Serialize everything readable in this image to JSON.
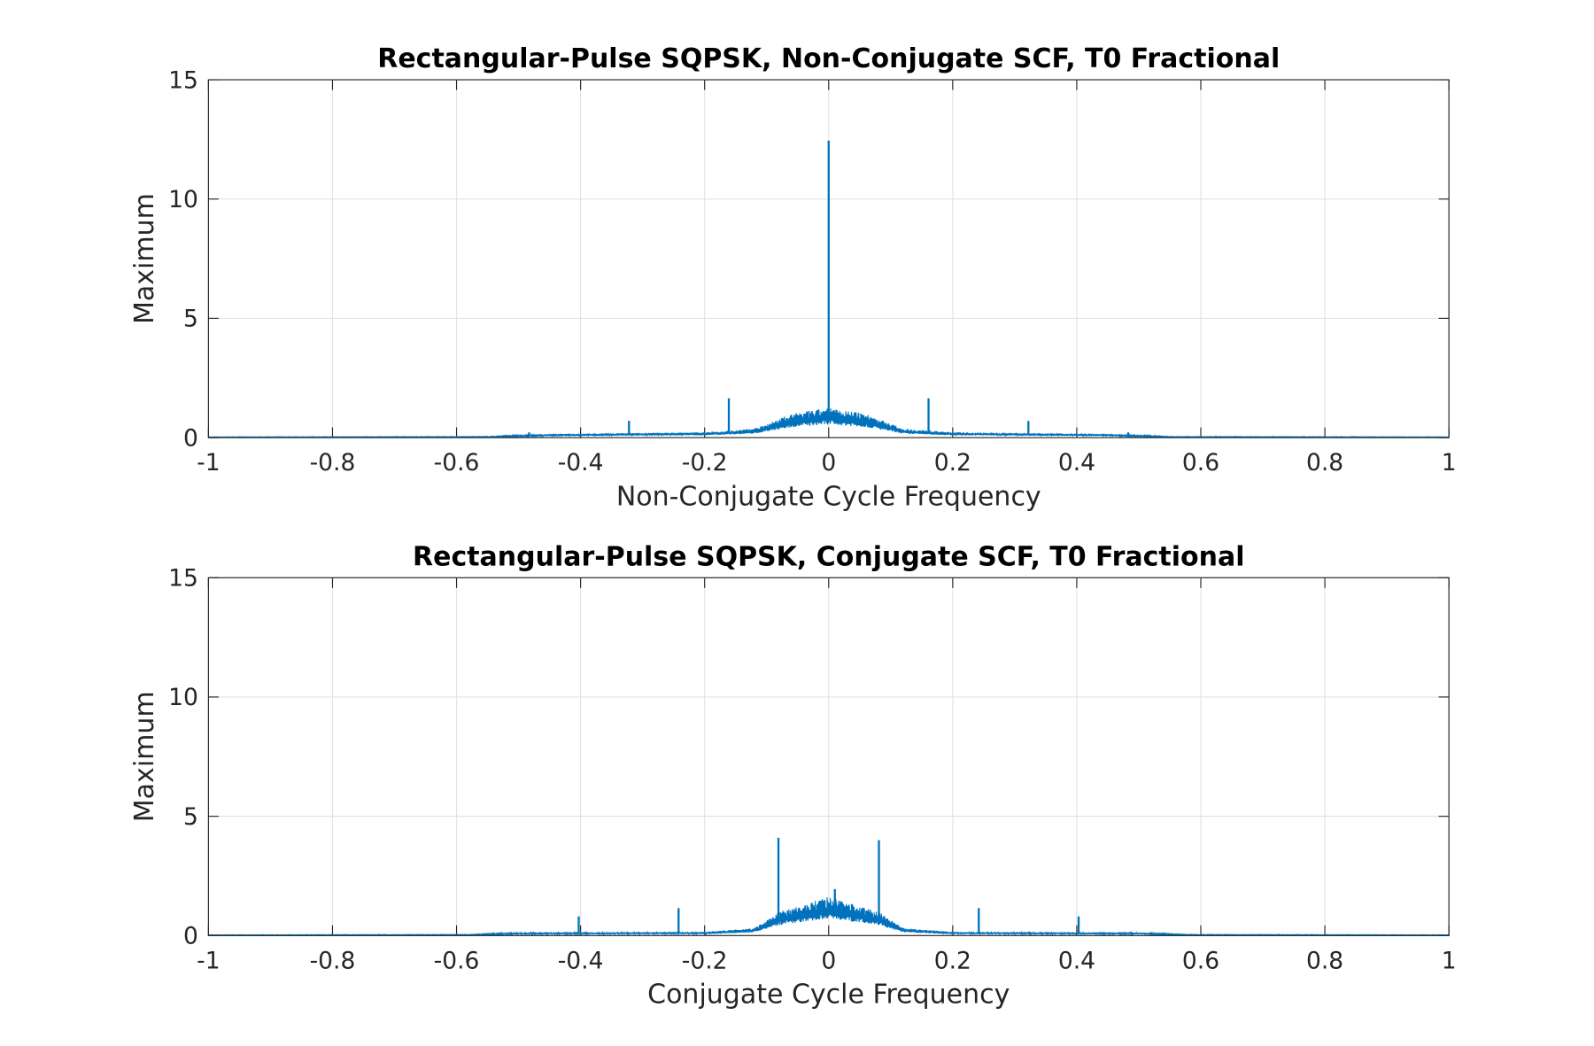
{
  "chart_data": [
    {
      "type": "line",
      "title": "Rectangular-Pulse SQPSK, Non-Conjugate SCF, T0 Fractional",
      "xlabel": "Non-Conjugate Cycle Frequency",
      "ylabel": "Maximum",
      "xlim": [
        -1,
        1
      ],
      "ylim": [
        0,
        15
      ],
      "xticks": [
        "-1",
        "-0.8",
        "-0.6",
        "-0.4",
        "-0.2",
        "0",
        "0.2",
        "0.4",
        "0.6",
        "0.8",
        "1"
      ],
      "yticks": [
        "0",
        "5",
        "10",
        "15"
      ],
      "grid": true,
      "color": "#0072BD",
      "envelope": {
        "x": [
          -1,
          -0.55,
          -0.45,
          -0.2,
          -0.12,
          -0.06,
          0,
          0.06,
          0.12,
          0.2,
          0.45,
          0.55,
          1
        ],
        "y": [
          0.02,
          0.03,
          0.12,
          0.18,
          0.3,
          0.8,
          1.0,
          0.8,
          0.3,
          0.18,
          0.12,
          0.03,
          0.02
        ]
      },
      "spikes": {
        "x": [
          0,
          -0.161,
          0.161,
          -0.322,
          0.322,
          -0.483,
          0.483,
          -0.644,
          0.644
        ],
        "y": [
          12.45,
          1.65,
          1.65,
          0.7,
          0.7,
          0.22,
          0.22,
          0.06,
          0.06
        ]
      }
    },
    {
      "type": "line",
      "title": "Rectangular-Pulse SQPSK, Conjugate SCF, T0 Fractional",
      "xlabel": "Conjugate Cycle Frequency",
      "ylabel": "Maximum",
      "xlim": [
        -1,
        1
      ],
      "ylim": [
        0,
        15
      ],
      "xticks": [
        "-1",
        "-0.8",
        "-0.6",
        "-0.4",
        "-0.2",
        "0",
        "0.2",
        "0.4",
        "0.6",
        "0.8",
        "1"
      ],
      "yticks": [
        "0",
        "5",
        "10",
        "15"
      ],
      "grid": true,
      "color": "#0072BD",
      "envelope": {
        "x": [
          -1,
          -0.58,
          -0.5,
          -0.2,
          -0.12,
          -0.08,
          0,
          0.08,
          0.12,
          0.2,
          0.5,
          0.58,
          1
        ],
        "y": [
          0.02,
          0.03,
          0.1,
          0.12,
          0.25,
          0.8,
          1.3,
          0.8,
          0.25,
          0.12,
          0.1,
          0.03,
          0.02
        ]
      },
      "spikes": {
        "x": [
          -0.081,
          0.081,
          -0.242,
          0.242,
          -0.403,
          0.403,
          -0.564,
          0.564,
          -0.725,
          0.725,
          0.01
        ],
        "y": [
          4.1,
          4.0,
          1.15,
          1.15,
          0.8,
          0.8,
          0.08,
          0.08,
          0.07,
          0.07,
          1.95
        ]
      }
    }
  ]
}
